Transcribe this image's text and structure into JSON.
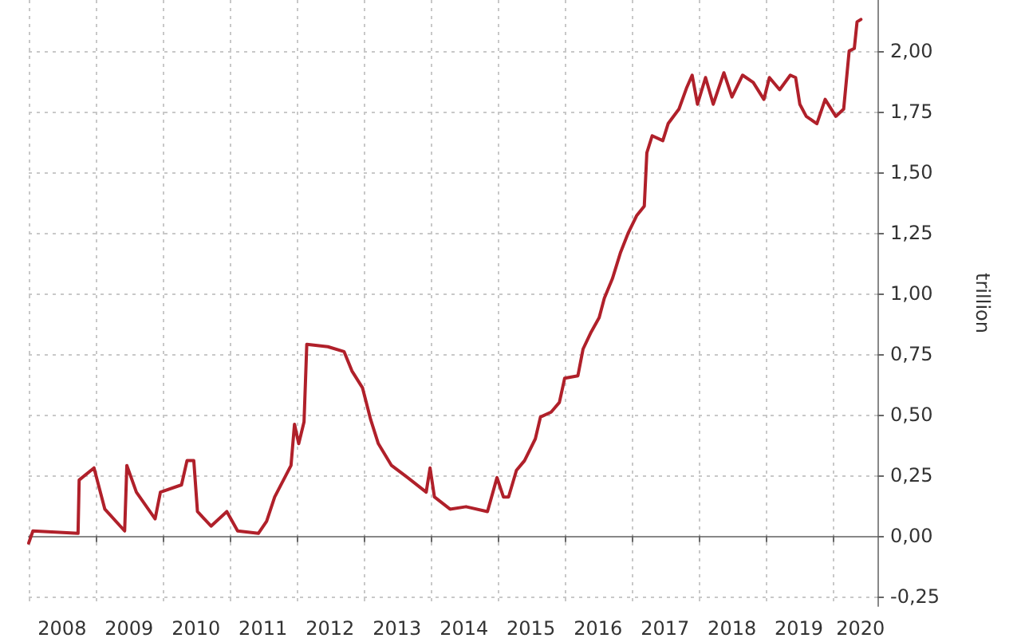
{
  "chart_data": {
    "type": "line",
    "ylabel": "trillion",
    "x": [
      "2008-01-01",
      "2008-01-24",
      "2008-09-26",
      "2008-10-02",
      "2008-12-22",
      "2009-02-19",
      "2009-06-07",
      "2009-06-19",
      "2009-08-10",
      "2009-11-20",
      "2009-12-19",
      "2010-04-13",
      "2010-05-13",
      "2010-06-19",
      "2010-07-09",
      "2010-09-21",
      "2010-12-16",
      "2011-02-13",
      "2011-06-06",
      "2011-07-21",
      "2011-09-03",
      "2011-12-01",
      "2011-12-20",
      "2012-01-12",
      "2012-02-10",
      "2012-02-25",
      "2012-06-19",
      "2012-09-15",
      "2012-10-28",
      "2012-12-25",
      "2013-02-07",
      "2013-03-21",
      "2013-06-01",
      "2013-08-28",
      "2013-12-07",
      "2013-12-28",
      "2014-01-21",
      "2014-04-16",
      "2014-07-12",
      "2014-11-06",
      "2014-12-28",
      "2015-02-01",
      "2015-03-01",
      "2015-04-13",
      "2015-05-27",
      "2015-07-25",
      "2015-08-22",
      "2015-10-19",
      "2015-12-03",
      "2016-01-01",
      "2016-03-13",
      "2016-04-10",
      "2016-05-24",
      "2016-07-07",
      "2016-08-04",
      "2016-09-17",
      "2016-11-01",
      "2016-12-13",
      "2017-01-27",
      "2017-03-10",
      "2017-03-24",
      "2017-04-22",
      "2017-06-19",
      "2017-07-18",
      "2017-09-15",
      "2017-10-28",
      "2017-11-26",
      "2017-12-25",
      "2018-02-07",
      "2018-03-21",
      "2018-05-18",
      "2018-07-01",
      "2018-08-28",
      "2018-10-25",
      "2018-12-22",
      "2019-01-21",
      "2019-03-18",
      "2019-05-15",
      "2019-06-13",
      "2019-07-06",
      "2019-08-10",
      "2019-10-07",
      "2019-11-21",
      "2020-01-18",
      "2020-03-01",
      "2020-03-31",
      "2020-04-28",
      "2020-05-13",
      "2020-06-03"
    ],
    "series": [
      {
        "color": "#b0202a",
        "values": [
          -0.03,
          0.02,
          0.01,
          0.23,
          0.28,
          0.11,
          0.02,
          0.29,
          0.18,
          0.07,
          0.18,
          0.21,
          0.31,
          0.31,
          0.1,
          0.04,
          0.1,
          0.02,
          0.01,
          0.06,
          0.16,
          0.29,
          0.46,
          0.38,
          0.47,
          0.79,
          0.78,
          0.76,
          0.68,
          0.61,
          0.48,
          0.38,
          0.29,
          0.24,
          0.18,
          0.28,
          0.16,
          0.11,
          0.12,
          0.1,
          0.24,
          0.16,
          0.16,
          0.27,
          0.31,
          0.4,
          0.49,
          0.51,
          0.55,
          0.65,
          0.66,
          0.77,
          0.84,
          0.9,
          0.98,
          1.06,
          1.17,
          1.25,
          1.32,
          1.36,
          1.58,
          1.65,
          1.63,
          1.7,
          1.76,
          1.85,
          1.9,
          1.78,
          1.89,
          1.78,
          1.91,
          1.81,
          1.9,
          1.87,
          1.8,
          1.89,
          1.84,
          1.9,
          1.89,
          1.78,
          1.73,
          1.7,
          1.8,
          1.73,
          1.76,
          2.0,
          2.01,
          2.12,
          2.13
        ]
      }
    ],
    "xlim": [
      "2008-01-01",
      "2020-09-01"
    ],
    "xticks": [
      {
        "value": "2008-01-01",
        "label": null
      },
      {
        "value": "2008-07-01",
        "label": "2008"
      },
      {
        "value": "2009-01-01",
        "label": null
      },
      {
        "value": "2009-07-01",
        "label": "2009"
      },
      {
        "value": "2010-01-01",
        "label": null
      },
      {
        "value": "2010-07-01",
        "label": "2010"
      },
      {
        "value": "2011-01-01",
        "label": null
      },
      {
        "value": "2011-07-01",
        "label": "2011"
      },
      {
        "value": "2012-01-01",
        "label": null
      },
      {
        "value": "2012-07-01",
        "label": "2012"
      },
      {
        "value": "2013-01-01",
        "label": null
      },
      {
        "value": "2013-07-01",
        "label": "2013"
      },
      {
        "value": "2014-01-01",
        "label": null
      },
      {
        "value": "2014-07-01",
        "label": "2014"
      },
      {
        "value": "2015-01-01",
        "label": null
      },
      {
        "value": "2015-07-01",
        "label": "2015"
      },
      {
        "value": "2016-01-01",
        "label": null
      },
      {
        "value": "2016-07-01",
        "label": "2016"
      },
      {
        "value": "2017-01-01",
        "label": null
      },
      {
        "value": "2017-07-01",
        "label": "2017"
      },
      {
        "value": "2018-01-01",
        "label": null
      },
      {
        "value": "2018-07-01",
        "label": "2018"
      },
      {
        "value": "2019-01-01",
        "label": null
      },
      {
        "value": "2019-07-01",
        "label": "2019"
      },
      {
        "value": "2020-01-01",
        "label": null
      },
      {
        "value": "2020-06-01",
        "label": "2020"
      }
    ],
    "ylim": [
      -0.29,
      2.21
    ],
    "yticks": [
      {
        "value": -0.25,
        "label": "-0,25"
      },
      {
        "value": 0,
        "label": "0,00"
      },
      {
        "value": 0.25,
        "label": "0,25"
      },
      {
        "value": 0.5,
        "label": "0,50"
      },
      {
        "value": 0.75,
        "label": "0,75"
      },
      {
        "value": 1,
        "label": "1,00"
      },
      {
        "value": 1.25,
        "label": "1,25"
      },
      {
        "value": 1.5,
        "label": "1,50"
      },
      {
        "value": 1.75,
        "label": "1,75"
      },
      {
        "value": 2,
        "label": "2,00"
      }
    ],
    "grid": true,
    "marker": "none",
    "line_style": "solid"
  }
}
